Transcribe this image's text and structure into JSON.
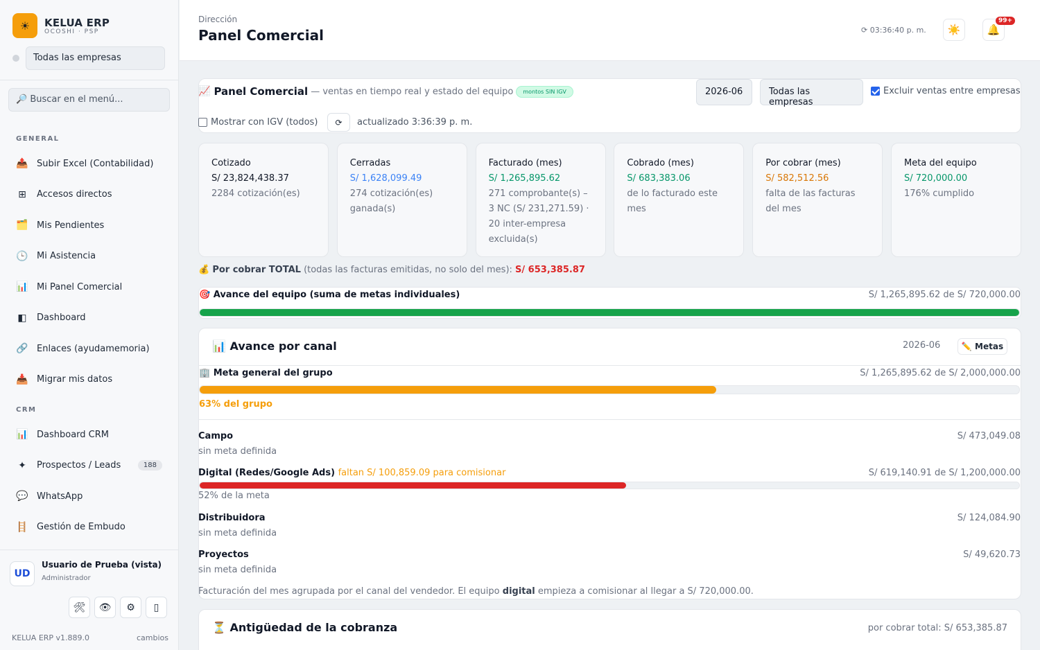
{
  "sidebar": {
    "brand_name": "KELUA ERP",
    "brand_sub": "OCOSHI · PSP",
    "company_select": "Todas las empresas",
    "search_placeholder": "🔎 Buscar en el menú...",
    "section_general": "GENERAL",
    "section_crm": "CRM",
    "general_items": [
      {
        "icon": "📤",
        "label": "Subir Excel (Contabilidad)"
      },
      {
        "icon": "⊞",
        "label": "Accesos directos"
      },
      {
        "icon": "🗂️",
        "label": "Mis Pendientes"
      },
      {
        "icon": "🕒",
        "label": "Mi Asistencia"
      },
      {
        "icon": "📊",
        "label": "Mi Panel Comercial"
      },
      {
        "icon": "◧",
        "label": "Dashboard"
      },
      {
        "icon": "🔗",
        "label": "Enlaces (ayudamemoria)"
      },
      {
        "icon": "📥",
        "label": "Migrar mis datos"
      }
    ],
    "crm_items": [
      {
        "icon": "📊",
        "label": "Dashboard CRM"
      },
      {
        "icon": "✦",
        "label": "Prospectos / Leads",
        "badge": "188"
      },
      {
        "icon": "💬",
        "label": "WhatsApp"
      },
      {
        "icon": "🪜",
        "label": "Gestión de Embudo"
      }
    ],
    "user_initials": "UD",
    "user_name": "Usuario de Prueba (vista)",
    "user_role": "Administrador",
    "user_actions": [
      "🛠",
      "👁",
      "⚙",
      "▯"
    ],
    "version": "KELUA ERP v1.889.0",
    "changes": "cambios"
  },
  "header": {
    "breadcrumb": "Dirección",
    "title": "Panel Comercial",
    "clock": "⟳ 03:36:40 p. m.",
    "theme_icon": "☀️",
    "bell_icon": "🔔",
    "notif_count": "99+"
  },
  "panel": {
    "title_icon": "📈",
    "title": "Panel Comercial",
    "subtitle": "— ventas en tiempo real y estado del equipo",
    "pill": "montos SIN IGV",
    "period": "2026-06",
    "company": "Todas las empresas",
    "exclude_label": "Excluir ventas entre empresas",
    "exclude_checked": true,
    "igv_label": "Mostrar con IGV (todos)",
    "igv_checked": false,
    "refresh_icon": "⟳",
    "updated": "actualizado 3:36:39 p. m."
  },
  "kpis": [
    {
      "label": "Cotizado",
      "value": "S/ 23,824,438.37",
      "note": "2284 cotización(es)",
      "color": "#111827"
    },
    {
      "label": "Cerradas",
      "value": "S/ 1,628,099.49",
      "note": "274 cotización(es) ganada(s)",
      "color": "#3b82f6"
    },
    {
      "label": "Facturado (mes)",
      "value": "S/ 1,265,895.62",
      "note": "271 comprobante(s) – 3 NC (S/ 231,271.59) · 20 inter-empresa excluida(s)",
      "color": "#059669"
    },
    {
      "label": "Cobrado (mes)",
      "value": "S/ 683,383.06",
      "note": "de lo facturado este mes",
      "color": "#059669"
    },
    {
      "label": "Por cobrar (mes)",
      "value": "S/ 582,512.56",
      "note": "falta de las facturas del mes",
      "color": "#d97706"
    },
    {
      "label": "Meta del equipo",
      "value": "S/ 720,000.00",
      "note": "176% cumplido",
      "color": "#059669"
    }
  ],
  "total_due": {
    "icon": "💰",
    "label": "Por cobrar TOTAL",
    "note": "(todas las facturas emitidas, no solo del mes):",
    "value": "S/ 653,385.87"
  },
  "team_progress": {
    "icon": "🎯",
    "title": "Avance del equipo (suma de metas individuales)",
    "amount": "S/ 1,265,895.62 de S/ 720,000.00",
    "percent": 100,
    "color": "#16a34a"
  },
  "channels": {
    "icon": "📊",
    "title": "Avance por canal",
    "period": "2026-06",
    "metas_button": "✏️ Metas",
    "group": {
      "icon": "🏢",
      "title": "Meta general del grupo",
      "amount": "S/ 1,265,895.62 de S/ 2,000,000.00",
      "percent": 63,
      "percent_label": "63% del grupo",
      "color": "#f59e0b"
    },
    "rows": [
      {
        "name": "Campo",
        "sub": "sin meta definida",
        "amount": "S/ 473,049.08"
      },
      {
        "name": "Digital (Redes/Google Ads)",
        "warning": "faltan S/ 100,859.09 para comisionar",
        "amount": "S/ 619,140.91 de S/ 1,200,000.00",
        "percent": 52,
        "sub": "52% de la meta",
        "color": "#dc2626"
      },
      {
        "name": "Distribuidora",
        "sub": "sin meta definida",
        "amount": "S/ 124,084.90"
      },
      {
        "name": "Proyectos",
        "sub": "sin meta definida",
        "amount": "S/ 49,620.73"
      }
    ],
    "footer_pre": "Facturación del mes agrupada por el canal del vendedor. El equipo",
    "footer_bold": "digital",
    "footer_post": "empieza a comisionar al llegar a S/ 720,000.00."
  },
  "aging": {
    "icon": "⏳",
    "title": "Antigüedad de la cobranza",
    "total": "por cobrar total: S/ 653,385.87"
  }
}
